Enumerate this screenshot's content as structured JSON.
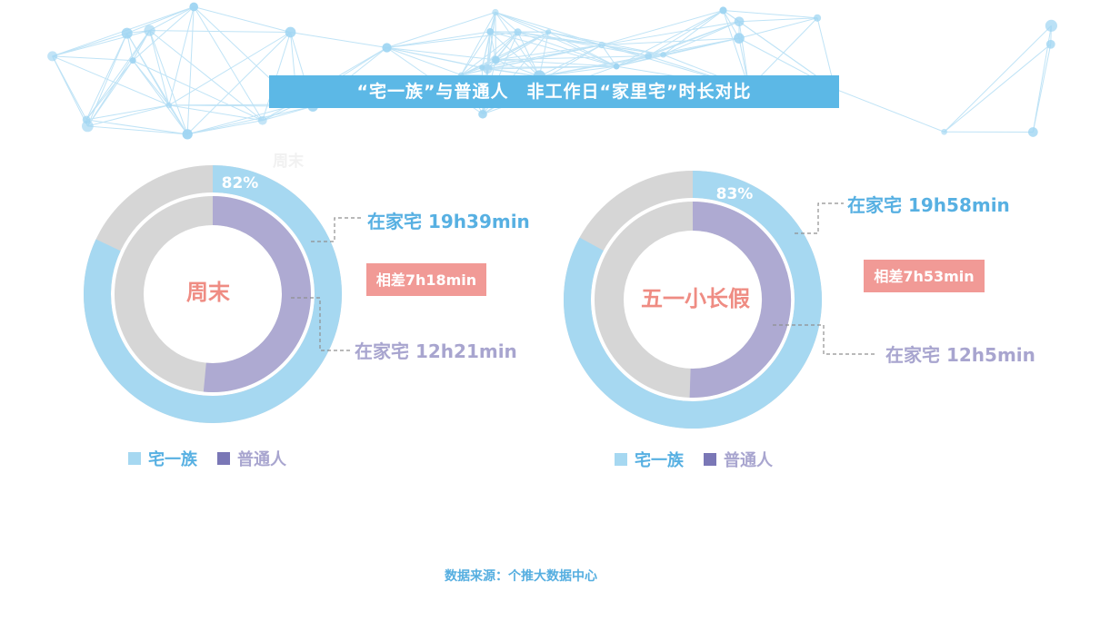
{
  "title": "“宅一族”与普通人　非工作日“家里宅”时长对比",
  "ghost_label": "周末",
  "colors": {
    "zhai_outer": "#a6d8f1",
    "zhai_text": "#57b0e2",
    "normal_inner": "#aeaad2",
    "normal_text": "#a8a5cf",
    "remainder": "#d6d6d6",
    "diff_bg": "#f19a96",
    "center_text": "#ef8c83",
    "legend_zhai": "#a6d8f1",
    "legend_normal": "#7a77b6"
  },
  "chart_data": [
    {
      "type": "pie",
      "subtype": "nested-donut",
      "center_label": "周末",
      "series": [
        {
          "name": "宅一族",
          "ring": "outer",
          "percent": 82,
          "percent_label": "82%",
          "annotation": "在家宅 19h39min"
        },
        {
          "name": "普通人",
          "ring": "inner",
          "percent": 51.5,
          "annotation": "在家宅 12h21min"
        }
      ],
      "difference_label": "相差7h18min",
      "legend": [
        "宅一族",
        "普通人"
      ]
    },
    {
      "type": "pie",
      "subtype": "nested-donut",
      "center_label": "五一小长假",
      "series": [
        {
          "name": "宅一族",
          "ring": "outer",
          "percent": 83,
          "percent_label": "83%",
          "annotation": "在家宅 19h58min"
        },
        {
          "name": "普通人",
          "ring": "inner",
          "percent": 50.5,
          "annotation": "在家宅 12h5min"
        }
      ],
      "difference_label": "相差7h53min",
      "legend": [
        "宅一族",
        "普通人"
      ]
    }
  ],
  "source": "数据来源：个推大数据中心"
}
